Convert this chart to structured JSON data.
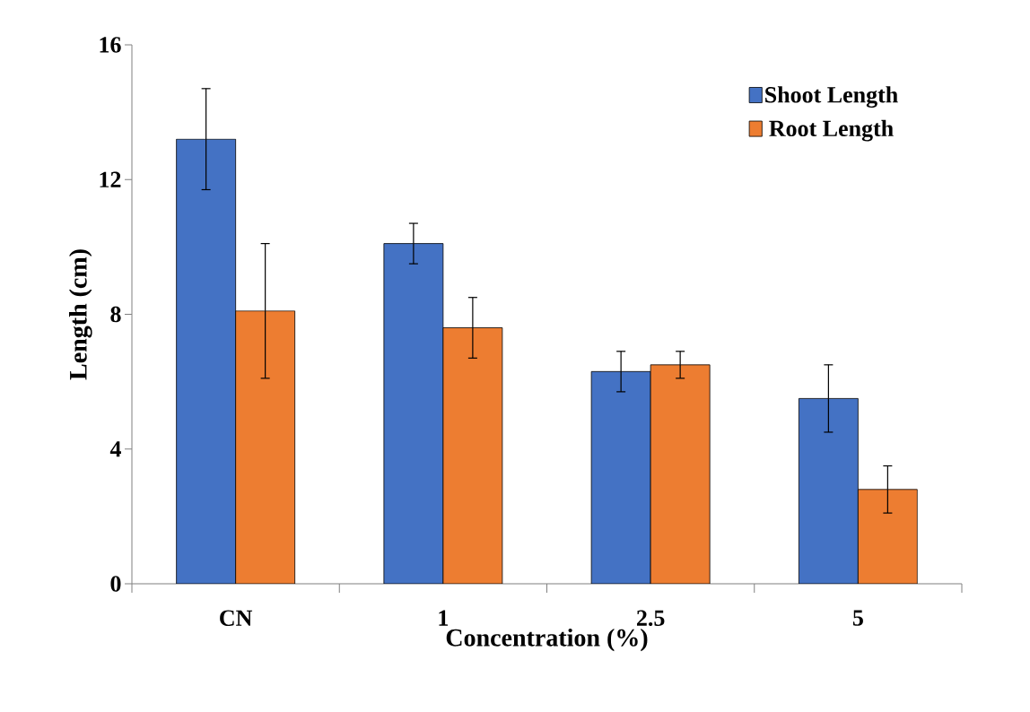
{
  "chart_data": {
    "type": "bar",
    "xlabel": "Concentration (%)",
    "ylabel": "Length (cm)",
    "categories": [
      "CN",
      "1",
      "2.5",
      "5"
    ],
    "series": [
      {
        "name": "Shoot Length",
        "color": "#4472c4",
        "values": [
          13.2,
          10.1,
          6.3,
          5.5
        ],
        "errors": [
          1.5,
          0.6,
          0.6,
          1.0
        ]
      },
      {
        "name": "Root Length",
        "color": "#ed7d31",
        "values": [
          8.1,
          7.6,
          6.5,
          2.8
        ],
        "errors": [
          2.0,
          0.9,
          0.4,
          0.7
        ]
      }
    ],
    "ylim": [
      0,
      16
    ],
    "yticks": [
      0,
      4,
      8,
      12,
      16
    ],
    "grid": false,
    "legend": "top right"
  }
}
